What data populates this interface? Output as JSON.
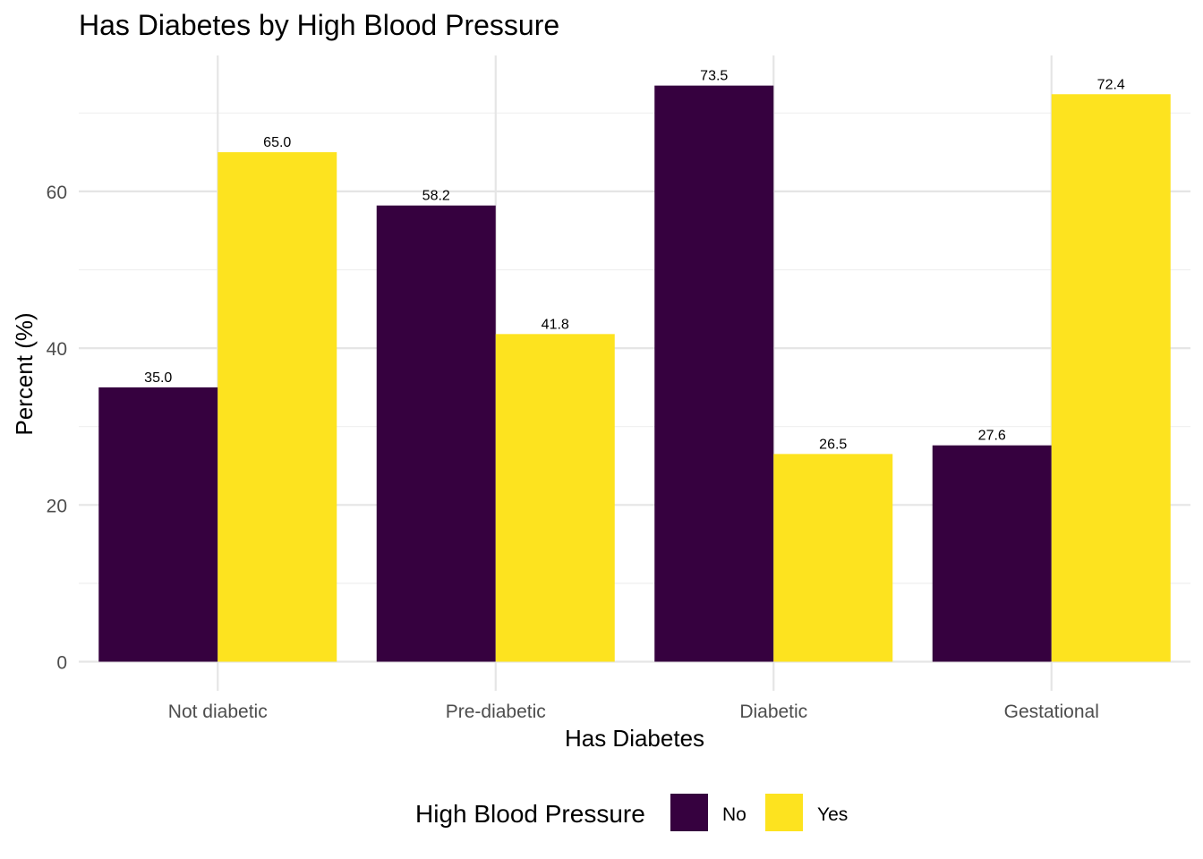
{
  "chart_data": {
    "type": "bar",
    "title": "Has Diabetes by High Blood Pressure",
    "xlabel": "Has Diabetes",
    "ylabel": "Percent (%)",
    "categories": [
      "Not diabetic",
      "Pre-diabetic",
      "Diabetic",
      "Gestational"
    ],
    "series": [
      {
        "name": "No",
        "color": "#36013f",
        "values": [
          35.0,
          58.2,
          73.5,
          27.6
        ],
        "labels": [
          "35.0",
          "58.2",
          "73.5",
          "27.6"
        ]
      },
      {
        "name": "Yes",
        "color": "#fde31f",
        "values": [
          65.0,
          41.8,
          26.5,
          72.4
        ],
        "labels": [
          "65.0",
          "41.8",
          "26.5",
          "72.4"
        ]
      }
    ],
    "ylim": [
      0,
      77
    ],
    "yticks": [
      0,
      20,
      40,
      60
    ],
    "grid": true,
    "legend": {
      "title": "High Blood Pressure",
      "position": "bottom"
    }
  }
}
